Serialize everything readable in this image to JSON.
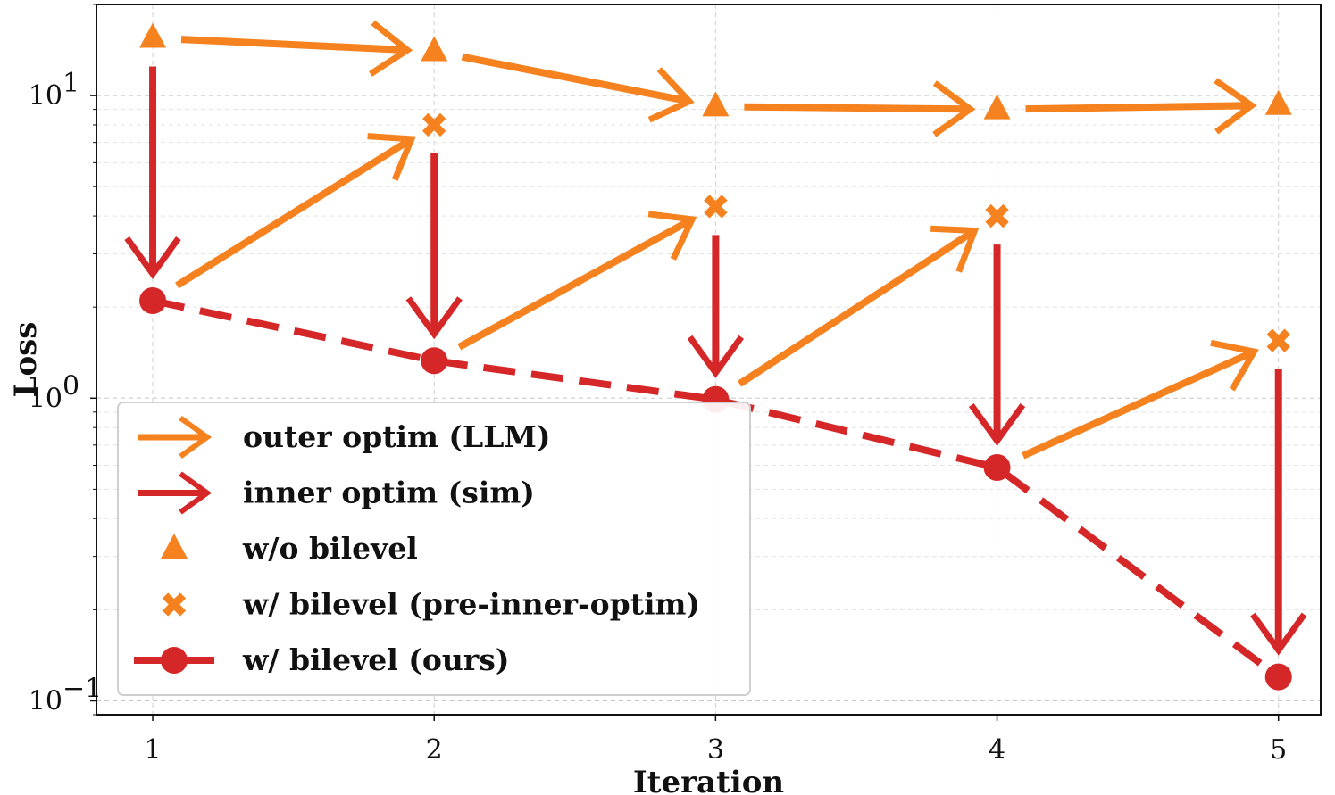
{
  "chart_data": {
    "type": "scatter",
    "xlabel": "Iteration",
    "ylabel": "Loss",
    "yscale": "log",
    "x": [
      1,
      2,
      3,
      4,
      5
    ],
    "xlim": [
      0.8,
      5.15
    ],
    "ylim": [
      0.09,
      20
    ],
    "x_ticks": [
      "1",
      "2",
      "3",
      "4",
      "5"
    ],
    "y_ticks": [
      {
        "value": 0.1,
        "base": "10",
        "exp": "−1"
      },
      {
        "value": 1,
        "base": "10",
        "exp": "0"
      },
      {
        "value": 10,
        "base": "10",
        "exp": "1"
      }
    ],
    "grid": true,
    "legend_position": "lower-left",
    "colors": {
      "outer": "#f5821f",
      "inner": "#d62728"
    },
    "series": [
      {
        "name": "w/o bilevel",
        "marker": "triangle",
        "color": "#f5821f",
        "values": [
          15.5,
          14.0,
          9.2,
          9.0,
          9.3
        ]
      },
      {
        "name": "w/ bilevel (pre-inner-optim)",
        "marker": "x",
        "color": "#f5821f",
        "values": [
          null,
          8.0,
          4.3,
          4.0,
          1.55
        ]
      },
      {
        "name": "w/ bilevel (ours)",
        "marker": "circle",
        "line": "dashed",
        "color": "#d62728",
        "values": [
          2.1,
          1.33,
          0.99,
          0.59,
          0.12
        ]
      }
    ],
    "arrows": {
      "outer optim (LLM)": [
        {
          "from": [
            1,
            15.5
          ],
          "to": [
            2,
            14.0
          ]
        },
        {
          "from": [
            2,
            14.0
          ],
          "to": [
            3,
            9.2
          ]
        },
        {
          "from": [
            3,
            9.2
          ],
          "to": [
            4,
            9.0
          ]
        },
        {
          "from": [
            4,
            9.0
          ],
          "to": [
            5,
            9.3
          ]
        },
        {
          "from": [
            1,
            2.1
          ],
          "to": [
            2,
            8.0
          ]
        },
        {
          "from": [
            2,
            1.33
          ],
          "to": [
            3,
            4.3
          ]
        },
        {
          "from": [
            3,
            0.99
          ],
          "to": [
            4,
            4.0
          ]
        },
        {
          "from": [
            4,
            0.59
          ],
          "to": [
            5,
            1.55
          ]
        }
      ],
      "inner optim (sim)": [
        {
          "from": [
            1,
            15.5
          ],
          "to": [
            1,
            2.1
          ]
        },
        {
          "from": [
            2,
            8.0
          ],
          "to": [
            2,
            1.33
          ]
        },
        {
          "from": [
            3,
            4.3
          ],
          "to": [
            3,
            0.99
          ]
        },
        {
          "from": [
            4,
            4.0
          ],
          "to": [
            4,
            0.59
          ]
        },
        {
          "from": [
            5,
            1.55
          ],
          "to": [
            5,
            0.12
          ]
        }
      ]
    },
    "legend": [
      {
        "label": "outer optim (LLM)",
        "symbol": "arrow",
        "color": "#f5821f"
      },
      {
        "label": "inner optim (sim)",
        "symbol": "arrow",
        "color": "#d62728"
      },
      {
        "label": "w/o bilevel",
        "symbol": "triangle",
        "color": "#f5821f"
      },
      {
        "label": "w/ bilevel (pre-inner-optim)",
        "symbol": "x",
        "color": "#f5821f"
      },
      {
        "label": "w/ bilevel (ours)",
        "symbol": "circle-line",
        "color": "#d62728"
      }
    ]
  }
}
